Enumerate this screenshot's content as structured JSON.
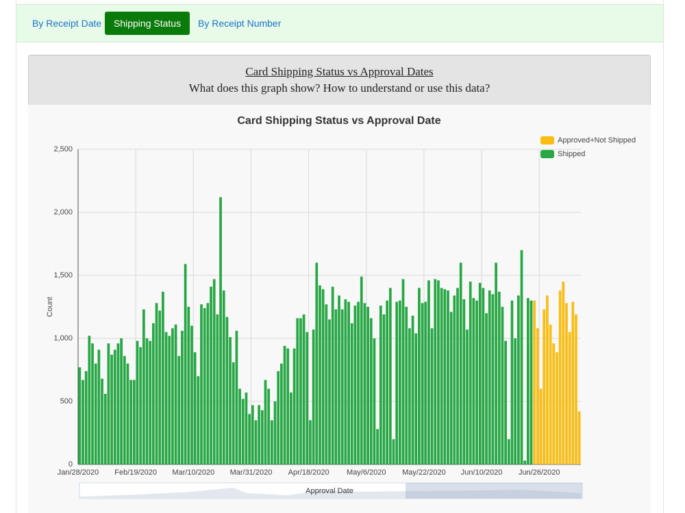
{
  "tabs": [
    "By Receipt Date",
    "Shipping Status",
    "By Receipt Number"
  ],
  "header": {
    "title": "Card Shipping Status vs Approval Dates",
    "question": "What does this graph show? How to understand or use this data?"
  },
  "chart_data": {
    "type": "bar",
    "title": "Card Shipping Status vs Approval Date",
    "y_label": "Count",
    "x_label": "Approval Date",
    "stacked": true,
    "grid": true,
    "legend": "top-right",
    "ylim": [
      0,
      2500
    ],
    "yticks": [
      0,
      500,
      {
        "value": 1000,
        "label": "1,000"
      },
      {
        "value": 1500,
        "label": "1,500"
      },
      {
        "value": 2000,
        "label": "2,000"
      },
      {
        "value": 2500,
        "label": "2,500"
      }
    ],
    "categories": [
      "Jan/28/2020",
      null,
      null,
      null,
      null,
      null,
      null,
      null,
      null,
      null,
      null,
      null,
      null,
      null,
      null,
      null,
      null,
      null,
      "Feb/19/2020",
      null,
      null,
      null,
      null,
      null,
      null,
      null,
      null,
      null,
      null,
      null,
      null,
      null,
      null,
      null,
      null,
      null,
      "Mar/10/2020",
      null,
      null,
      null,
      null,
      null,
      null,
      null,
      null,
      null,
      null,
      null,
      null,
      null,
      null,
      null,
      null,
      null,
      "Mar/31/2020",
      null,
      null,
      null,
      null,
      null,
      null,
      null,
      null,
      null,
      null,
      null,
      null,
      null,
      null,
      null,
      null,
      null,
      "Apr/18/2020",
      null,
      null,
      null,
      null,
      null,
      null,
      null,
      null,
      null,
      null,
      null,
      null,
      null,
      null,
      null,
      null,
      null,
      "May/6/2020",
      null,
      null,
      null,
      null,
      null,
      null,
      null,
      null,
      null,
      null,
      null,
      null,
      null,
      null,
      null,
      null,
      null,
      "May/22/2020",
      null,
      null,
      null,
      null,
      null,
      null,
      null,
      null,
      null,
      null,
      null,
      null,
      null,
      null,
      null,
      null,
      null,
      "Jun/10/2020",
      null,
      null,
      null,
      null,
      null,
      null,
      null,
      null,
      null,
      null,
      null,
      null,
      null,
      null,
      null,
      null,
      null,
      "Jun/26/2020",
      null,
      null,
      null,
      null,
      null,
      null,
      null,
      null,
      null,
      null,
      null,
      null
    ],
    "series": [
      {
        "name": "Approved+Not Shipped",
        "color": "#fbbd14",
        "values": [
          0,
          0,
          0,
          0,
          0,
          0,
          0,
          0,
          0,
          0,
          0,
          0,
          0,
          0,
          0,
          0,
          0,
          0,
          0,
          0,
          0,
          0,
          0,
          0,
          0,
          0,
          0,
          0,
          0,
          0,
          0,
          0,
          0,
          0,
          0,
          0,
          0,
          0,
          0,
          0,
          0,
          0,
          0,
          0,
          0,
          0,
          0,
          0,
          0,
          0,
          0,
          0,
          0,
          0,
          0,
          0,
          0,
          0,
          0,
          0,
          0,
          0,
          0,
          0,
          0,
          0,
          0,
          0,
          0,
          0,
          0,
          0,
          0,
          0,
          0,
          0,
          0,
          0,
          0,
          0,
          0,
          0,
          0,
          0,
          0,
          0,
          0,
          0,
          0,
          0,
          0,
          0,
          0,
          0,
          0,
          0,
          0,
          0,
          0,
          0,
          0,
          0,
          0,
          0,
          0,
          0,
          0,
          0,
          0,
          0,
          0,
          0,
          0,
          0,
          0,
          0,
          0,
          0,
          0,
          0,
          0,
          0,
          0,
          0,
          0,
          0,
          0,
          0,
          0,
          0,
          0,
          0,
          0,
          0,
          0,
          0,
          0,
          0,
          0,
          0,
          0,
          0,
          1300,
          1080,
          600,
          1230,
          1340,
          1110,
          960,
          890,
          1380,
          1450,
          1280,
          1050,
          1290,
          1190,
          420
        ]
      },
      {
        "name": "Shipped",
        "color": "#28a745",
        "values": [
          770,
          670,
          740,
          1020,
          960,
          800,
          910,
          680,
          560,
          960,
          870,
          910,
          960,
          1000,
          860,
          800,
          670,
          670,
          980,
          930,
          1230,
          1000,
          980,
          1120,
          1280,
          1220,
          1370,
          1050,
          1020,
          1080,
          1110,
          860,
          1060,
          1590,
          1250,
          1100,
          890,
          700,
          1270,
          1240,
          1280,
          1410,
          1470,
          1190,
          2120,
          1380,
          1170,
          1010,
          810,
          1060,
          600,
          520,
          570,
          400,
          470,
          350,
          470,
          430,
          670,
          600,
          350,
          500,
          740,
          800,
          940,
          920,
          570,
          920,
          1160,
          1160,
          1190,
          1050,
          350,
          1070,
          1600,
          1420,
          1390,
          1270,
          1150,
          1410,
          1230,
          1340,
          1230,
          1310,
          1290,
          1120,
          1260,
          1290,
          1490,
          1280,
          1250,
          1160,
          1000,
          280,
          1260,
          1190,
          1300,
          1400,
          200,
          1290,
          1300,
          1470,
          1250,
          1080,
          1180,
          1040,
          1400,
          1280,
          1290,
          1460,
          1080,
          1470,
          1460,
          1400,
          1390,
          1380,
          1210,
          1340,
          1400,
          1600,
          1310,
          1070,
          1450,
          1320,
          1300,
          1440,
          1400,
          1200,
          1380,
          1350,
          1600,
          1370,
          1250,
          980,
          200,
          1300,
          1000,
          1340,
          1700,
          30,
          1320,
          1300,
          0,
          0,
          0,
          0,
          0,
          0,
          0,
          0,
          0,
          0,
          0,
          0,
          0,
          0,
          0
        ]
      }
    ]
  }
}
